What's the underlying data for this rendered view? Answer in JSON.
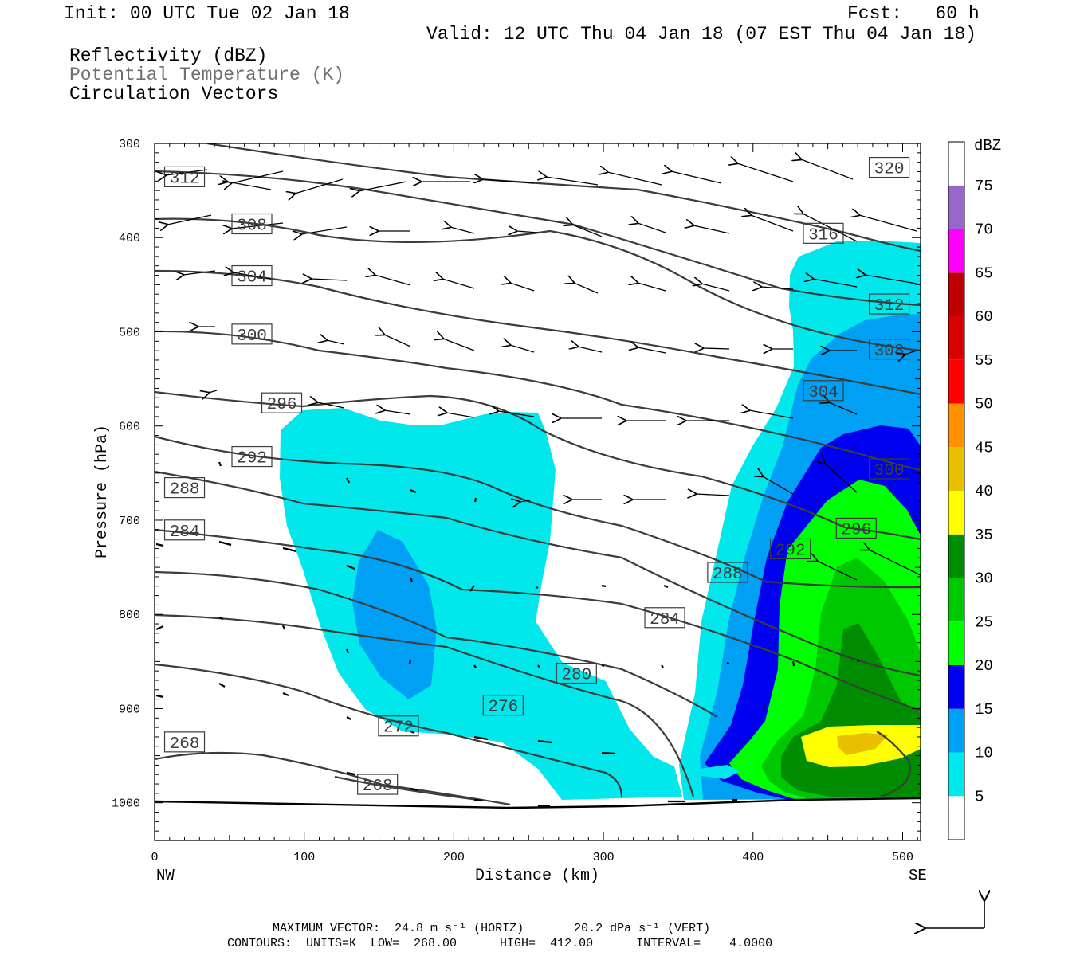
{
  "header": {
    "init": "Init: 00 UTC Tue 02 Jan 18",
    "fcst": "Fcst:   60 h",
    "valid": "Valid: 12 UTC Thu 04 Jan 18 (07 EST Thu 04 Jan 18)"
  },
  "fields": {
    "reflectivity": "Reflectivity (dBZ)",
    "theta": "Potential Temperature (K)",
    "vectors": "Circulation Vectors"
  },
  "chart_data": {
    "type": "cross-section",
    "xlabel": "Distance (km)",
    "ylabel": "Pressure (hPa)",
    "x_ticks": [
      0,
      100,
      200,
      300,
      400,
      500
    ],
    "y_ticks": [
      300,
      400,
      500,
      600,
      700,
      800,
      900,
      1000
    ],
    "xlim": [
      0,
      512
    ],
    "ylim": [
      1040,
      300
    ],
    "endpoints": {
      "left": "NW",
      "right": "SE"
    },
    "colorbar": {
      "title": "dBZ",
      "levels": [
        5,
        10,
        15,
        20,
        25,
        30,
        35,
        40,
        45,
        50,
        55,
        60,
        65,
        70,
        75
      ],
      "colors": [
        "#ffffff",
        "#00e8ec",
        "#00a0f4",
        "#0000f0",
        "#00ff00",
        "#00c800",
        "#008c00",
        "#ffff00",
        "#e8c000",
        "#ff9000",
        "#ff0000",
        "#d80000",
        "#c00000",
        "#ff00ff",
        "#9966cc",
        "#ffffff"
      ]
    },
    "contour_labels": [
      {
        "value": "312",
        "x": 20,
        "p": 335
      },
      {
        "value": "308",
        "x": 65,
        "p": 385
      },
      {
        "value": "304",
        "x": 65,
        "p": 440
      },
      {
        "value": "300",
        "x": 65,
        "p": 502
      },
      {
        "value": "296",
        "x": 85,
        "p": 575
      },
      {
        "value": "292",
        "x": 65,
        "p": 632
      },
      {
        "value": "288",
        "x": 20,
        "p": 665
      },
      {
        "value": "284",
        "x": 20,
        "p": 710
      },
      {
        "value": "268",
        "x": 20,
        "p": 935
      },
      {
        "value": "272",
        "x": 163,
        "p": 918
      },
      {
        "value": "268",
        "x": 149,
        "p": 980
      },
      {
        "value": "276",
        "x": 233,
        "p": 896
      },
      {
        "value": "280",
        "x": 282,
        "p": 862
      },
      {
        "value": "284",
        "x": 341,
        "p": 803
      },
      {
        "value": "288",
        "x": 383,
        "p": 755
      },
      {
        "value": "292",
        "x": 425,
        "p": 730
      },
      {
        "value": "296",
        "x": 469,
        "p": 708
      },
      {
        "value": "300",
        "x": 491,
        "p": 645
      },
      {
        "value": "304",
        "x": 447,
        "p": 562
      },
      {
        "value": "308",
        "x": 491,
        "p": 518
      },
      {
        "value": "312",
        "x": 491,
        "p": 470
      },
      {
        "value": "316",
        "x": 447,
        "p": 395
      },
      {
        "value": "320",
        "x": 491,
        "p": 325
      }
    ]
  },
  "footer": {
    "max_vector": "MAXIMUM VECTOR:  24.8 m s⁻¹ (HORIZ)       20.2 dPa s⁻¹ (VERT)",
    "contours": "CONTOURS:  UNITS=K  LOW=  268.00      HIGH=  412.00      INTERVAL=    4.0000"
  }
}
